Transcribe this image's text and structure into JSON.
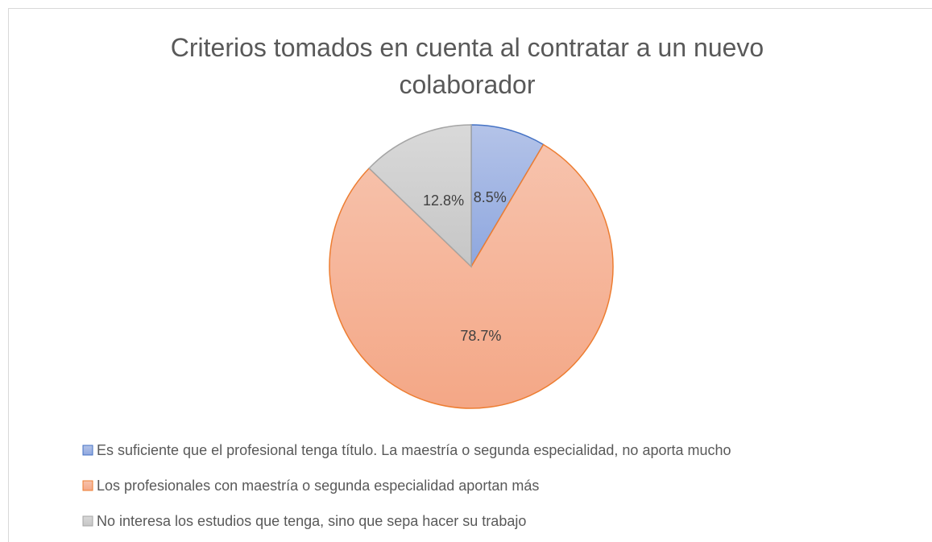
{
  "chart_data": {
    "type": "pie",
    "title": "Criterios tomados en cuenta al contratar a un nuevo colaborador",
    "categories": [
      "Es suficiente que el profesional tenga título. La maestría o segunda especialidad, no aporta mucho",
      "Los profesionales con maestría o segunda especialidad aportan más",
      "No interesa los estudios que tenga, sino que sepa hacer su trabajo"
    ],
    "values": [
      8.5,
      78.7,
      12.8
    ],
    "value_labels": [
      "8.5%",
      "78.7%",
      "12.8%"
    ],
    "colors": [
      "#4472c4",
      "#ed7d31",
      "#a5a5a5"
    ],
    "legend": "bottom"
  }
}
